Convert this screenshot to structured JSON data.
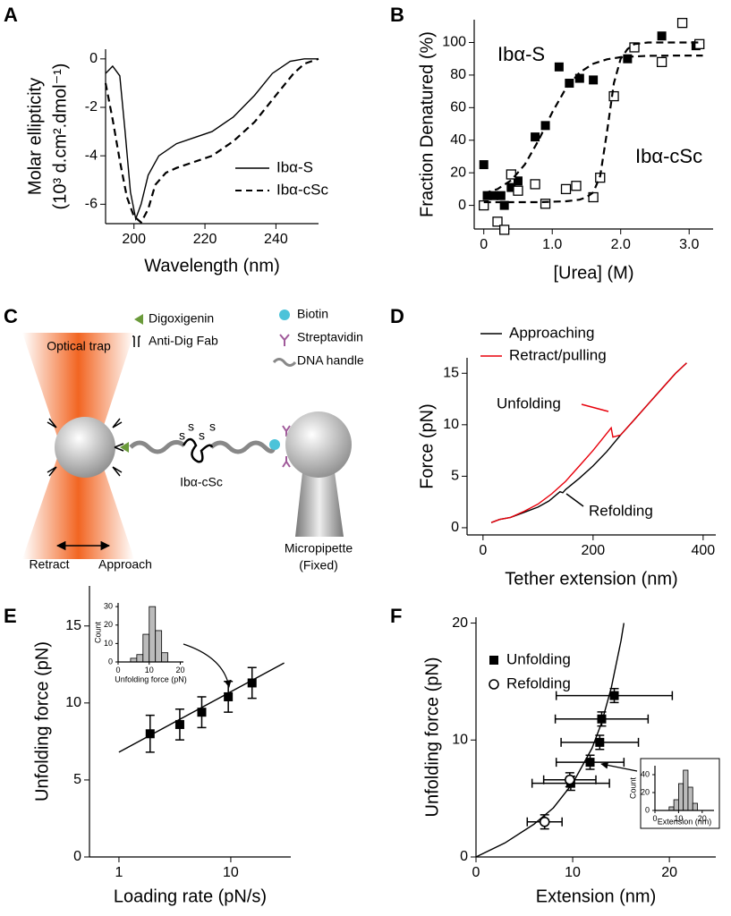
{
  "chart_data": [
    {
      "type": "line",
      "panel_label": "A",
      "ylabel": [
        "Molar ellipticity",
        "(10³ d.cm².dmol⁻¹)"
      ],
      "xlabel": "Wavelength (nm)",
      "xlim": [
        192,
        252
      ],
      "xticks": [
        200,
        220,
        240
      ],
      "ylim": [
        -6.8,
        0.4
      ],
      "yticks": [
        0,
        -2,
        -4,
        -6
      ],
      "legend": true,
      "series": [
        {
          "name": "Ibα-S",
          "color": "#000000",
          "line": "solid",
          "marker": "none",
          "x": [
            192,
            194,
            196,
            197.5,
            199,
            200.5,
            202,
            204,
            207,
            212,
            216,
            222,
            228,
            234,
            239,
            244,
            248,
            252
          ],
          "values": [
            -0.6,
            -0.3,
            -0.7,
            -3.0,
            -5.5,
            -6.6,
            -6.0,
            -4.8,
            -4.0,
            -3.5,
            -3.3,
            -3.0,
            -2.4,
            -1.5,
            -0.6,
            -0.1,
            0,
            0
          ]
        },
        {
          "name": "Ibα-cSc",
          "color": "#000000",
          "line": "dashed",
          "marker": "none",
          "x": [
            192,
            194,
            196,
            198,
            200,
            202,
            204,
            206,
            209,
            212,
            216,
            222,
            228,
            234,
            240,
            245,
            248,
            252
          ],
          "values": [
            -1.0,
            -2.5,
            -4.2,
            -5.7,
            -6.5,
            -6.75,
            -6.2,
            -5.2,
            -4.7,
            -4.5,
            -4.3,
            -4.0,
            -3.4,
            -2.6,
            -1.5,
            -0.6,
            -0.2,
            0
          ]
        }
      ]
    },
    {
      "type": "scatter",
      "panel_label": "B",
      "ylabel": "Fraction Denatured (%)",
      "xlabel": "[Urea] (M)",
      "xlim": [
        -0.14,
        3.35
      ],
      "xticks": [
        0,
        {
          "value": 1,
          "label": "1.0"
        },
        {
          "value": 2,
          "label": "2.0"
        },
        {
          "value": 3,
          "label": "3.0"
        }
      ],
      "ylim": [
        -14.5,
        114
      ],
      "yticks": [
        0,
        20,
        40,
        60,
        80,
        100
      ],
      "legend": false,
      "annotations": [
        {
          "text": "Ibα-S",
          "color": "#000000"
        },
        {
          "text": "Ibα-cSc",
          "color": "#000000"
        }
      ],
      "series": [
        {
          "color": "#000000",
          "line": "none",
          "marker": "square",
          "x": [
            0,
            0.05,
            0.15,
            0.25,
            0.3,
            0.4,
            0.5,
            0.75,
            0.9,
            1.1,
            1.25,
            1.4,
            1.6,
            2.1,
            2.6,
            3.1
          ],
          "values": [
            25,
            6,
            6,
            6,
            0,
            11,
            15,
            42,
            49,
            85,
            75,
            78,
            77,
            90,
            104,
            98
          ]
        },
        {
          "color": "#000000",
          "line": "none",
          "marker": "open-square",
          "x": [
            0,
            0.2,
            0.3,
            0.4,
            0.5,
            0.75,
            0.9,
            1.2,
            1.35,
            1.6,
            1.7,
            1.9,
            2.2,
            2.6,
            2.9,
            3.15
          ],
          "values": [
            0,
            -10,
            -15,
            19,
            9,
            13,
            1,
            10,
            12,
            5,
            17,
            67,
            97,
            88,
            112,
            99
          ]
        },
        {
          "color": "#000000",
          "line": "dashed",
          "marker": "none",
          "x": [
            0,
            0.2,
            0.4,
            0.6,
            0.8,
            1.0,
            1.2,
            1.4,
            1.6,
            1.8,
            2.0,
            2.4,
            2.8,
            3.2
          ],
          "values": [
            7.3,
            10,
            15.4,
            25.1,
            39.9,
            57.1,
            71.9,
            81.6,
            87,
            89.7,
            91,
            91.8,
            92,
            92
          ]
        },
        {
          "color": "#000000",
          "line": "dashed",
          "marker": "none",
          "x": [
            0,
            0.4,
            0.8,
            1.2,
            1.4,
            1.5,
            1.6,
            1.7,
            1.8,
            1.9,
            2.0,
            2.1,
            2.2,
            2.4,
            2.8,
            3.2
          ],
          "values": [
            2,
            2,
            2,
            2.5,
            3.5,
            5,
            8,
            18,
            45,
            75,
            90,
            96,
            99,
            100,
            100,
            100
          ]
        }
      ]
    },
    {
      "type": "line",
      "panel_label": "D",
      "ylabel": "Force (pN)",
      "xlabel": "Tether extension (nm)",
      "xlim": [
        -29,
        423
      ],
      "xticks": [
        0,
        200,
        400
      ],
      "ylim": [
        -0.7,
        16.5
      ],
      "yticks": [
        0,
        5,
        10,
        15
      ],
      "legend": true,
      "annotations": [
        {
          "text": "Unfolding",
          "color": "#e8000b"
        },
        {
          "text": "Refolding",
          "color": "#000000"
        }
      ],
      "series": [
        {
          "name": "Approaching",
          "color": "#000000",
          "line": "solid",
          "marker": "none",
          "x": [
            15,
            30,
            50,
            75,
            100,
            120,
            140,
            145,
            150,
            175,
            200,
            225,
            250,
            275,
            300,
            325,
            350,
            370
          ],
          "values": [
            0.5,
            0.8,
            1.0,
            1.5,
            2.0,
            2.6,
            3.5,
            3.4,
            3.7,
            4.8,
            6.0,
            7.4,
            9.0,
            10.5,
            12.0,
            13.5,
            15.0,
            16.0
          ]
        },
        {
          "name": "Retract/pulling",
          "color": "#e8000b",
          "line": "solid",
          "marker": "none",
          "x": [
            15,
            30,
            50,
            75,
            100,
            125,
            150,
            175,
            200,
            215,
            230,
            233,
            236,
            250,
            275,
            300,
            325,
            350,
            370
          ],
          "values": [
            0.5,
            0.8,
            1.0,
            1.6,
            2.3,
            3.3,
            4.5,
            6.0,
            7.5,
            8.5,
            9.5,
            9.7,
            8.8,
            9.0,
            10.5,
            12.0,
            13.5,
            15.0,
            16.0
          ]
        }
      ]
    },
    {
      "type": "scatter",
      "panel_label": "E",
      "ylabel": "Unfolding force (pN)",
      "xlabel": "Loading rate (pN/s)",
      "xscale": "log",
      "xlim": [
        0.545,
        34.4
      ],
      "xticks": [
        1,
        10
      ],
      "ylim": [
        0,
        17.6
      ],
      "yticks": [
        0,
        5,
        10,
        15
      ],
      "legend": false,
      "series": [
        {
          "color": "#000000",
          "line": "none",
          "marker": "square",
          "x": [
            1.9,
            3.5,
            5.5,
            9.5,
            15.5
          ],
          "values": [
            8.0,
            8.6,
            9.4,
            10.4,
            11.3
          ],
          "yerr": [
            1.2,
            1.0,
            1.0,
            1.0,
            1.0
          ]
        },
        {
          "color": "#000000",
          "line": "solid",
          "marker": "none",
          "x": [
            1,
            30
          ],
          "values": [
            6.8,
            12.6
          ]
        }
      ],
      "inset": {
        "type": "histogram",
        "xlabel": "Unfolding force (pN)",
        "ylabel": "Count",
        "bins": [
          4,
          6,
          8,
          10,
          12,
          14,
          16
        ],
        "counts": [
          2,
          4,
          15,
          30,
          17,
          5
        ],
        "color": "#bbbbbb",
        "xlim": [
          0,
          21
        ],
        "xticks": [
          0,
          10,
          20
        ],
        "ylim": [
          0,
          32
        ],
        "yticks": [
          0,
          10,
          20,
          30
        ]
      }
    },
    {
      "type": "scatter",
      "panel_label": "F",
      "ylabel": "Unfolding force (pN)",
      "xlabel": "Extension (nm)",
      "xlim": [
        0,
        24.8
      ],
      "xticks": [
        0,
        10,
        20
      ],
      "ylim": [
        0,
        20.5
      ],
      "yticks": [
        0,
        10,
        20
      ],
      "legend": true,
      "series": [
        {
          "name": "Unfolding",
          "color": "#000000",
          "line": "none",
          "marker": "square",
          "x": [
            14.3,
            13.0,
            12.8,
            11.8,
            9.8
          ],
          "values": [
            13.8,
            11.8,
            9.8,
            8.1,
            6.3
          ],
          "xerr": [
            6.0,
            4.8,
            4.0,
            3.5,
            4.0
          ],
          "yerr": [
            0.6,
            0.6,
            0.6,
            0.6,
            0.6
          ]
        },
        {
          "name": "Refolding",
          "color": "#000000",
          "line": "none",
          "marker": "circle-open",
          "x": [
            9.7,
            7.1
          ],
          "values": [
            6.6,
            3.0
          ],
          "xerr": [
            2.7,
            1.8
          ],
          "yerr": [
            0.6,
            0.6
          ]
        },
        {
          "color": "#000000",
          "line": "solid",
          "marker": "none",
          "x": [
            0,
            3,
            6,
            8,
            10,
            12,
            13,
            14,
            15,
            15.3
          ],
          "values": [
            0,
            1.2,
            2.8,
            4.2,
            6.3,
            9.3,
            11.5,
            14.5,
            18.5,
            20
          ]
        }
      ],
      "inset": {
        "type": "histogram",
        "xlabel": "Extension (nm)",
        "ylabel": "Count",
        "bins": [
          6,
          8,
          10,
          12,
          14,
          16,
          18
        ],
        "counts": [
          4,
          12,
          30,
          45,
          26,
          8
        ],
        "color": "#bbbbbb",
        "xlim": [
          0,
          25
        ],
        "xticks": [
          0,
          10,
          20
        ],
        "ylim": [
          0,
          50
        ],
        "yticks": [
          0,
          20,
          40
        ]
      }
    }
  ],
  "diagram": {
    "panel_label": "C",
    "labels": {
      "optical_trap": "Optical trap",
      "digoxigenin": "Digoxigenin",
      "anti_dig_fab": "Anti-Dig Fab",
      "biotin": "Biotin",
      "streptavidin": "Streptavidin",
      "dna_handle": "DNA handle",
      "protein": "Ibα-cSc",
      "micropipette": "Micropipette",
      "fixed": "(Fixed)",
      "retract": "Retract",
      "approach": "Approach",
      "disulfide": [
        "s",
        "s",
        "s",
        "s"
      ]
    }
  }
}
